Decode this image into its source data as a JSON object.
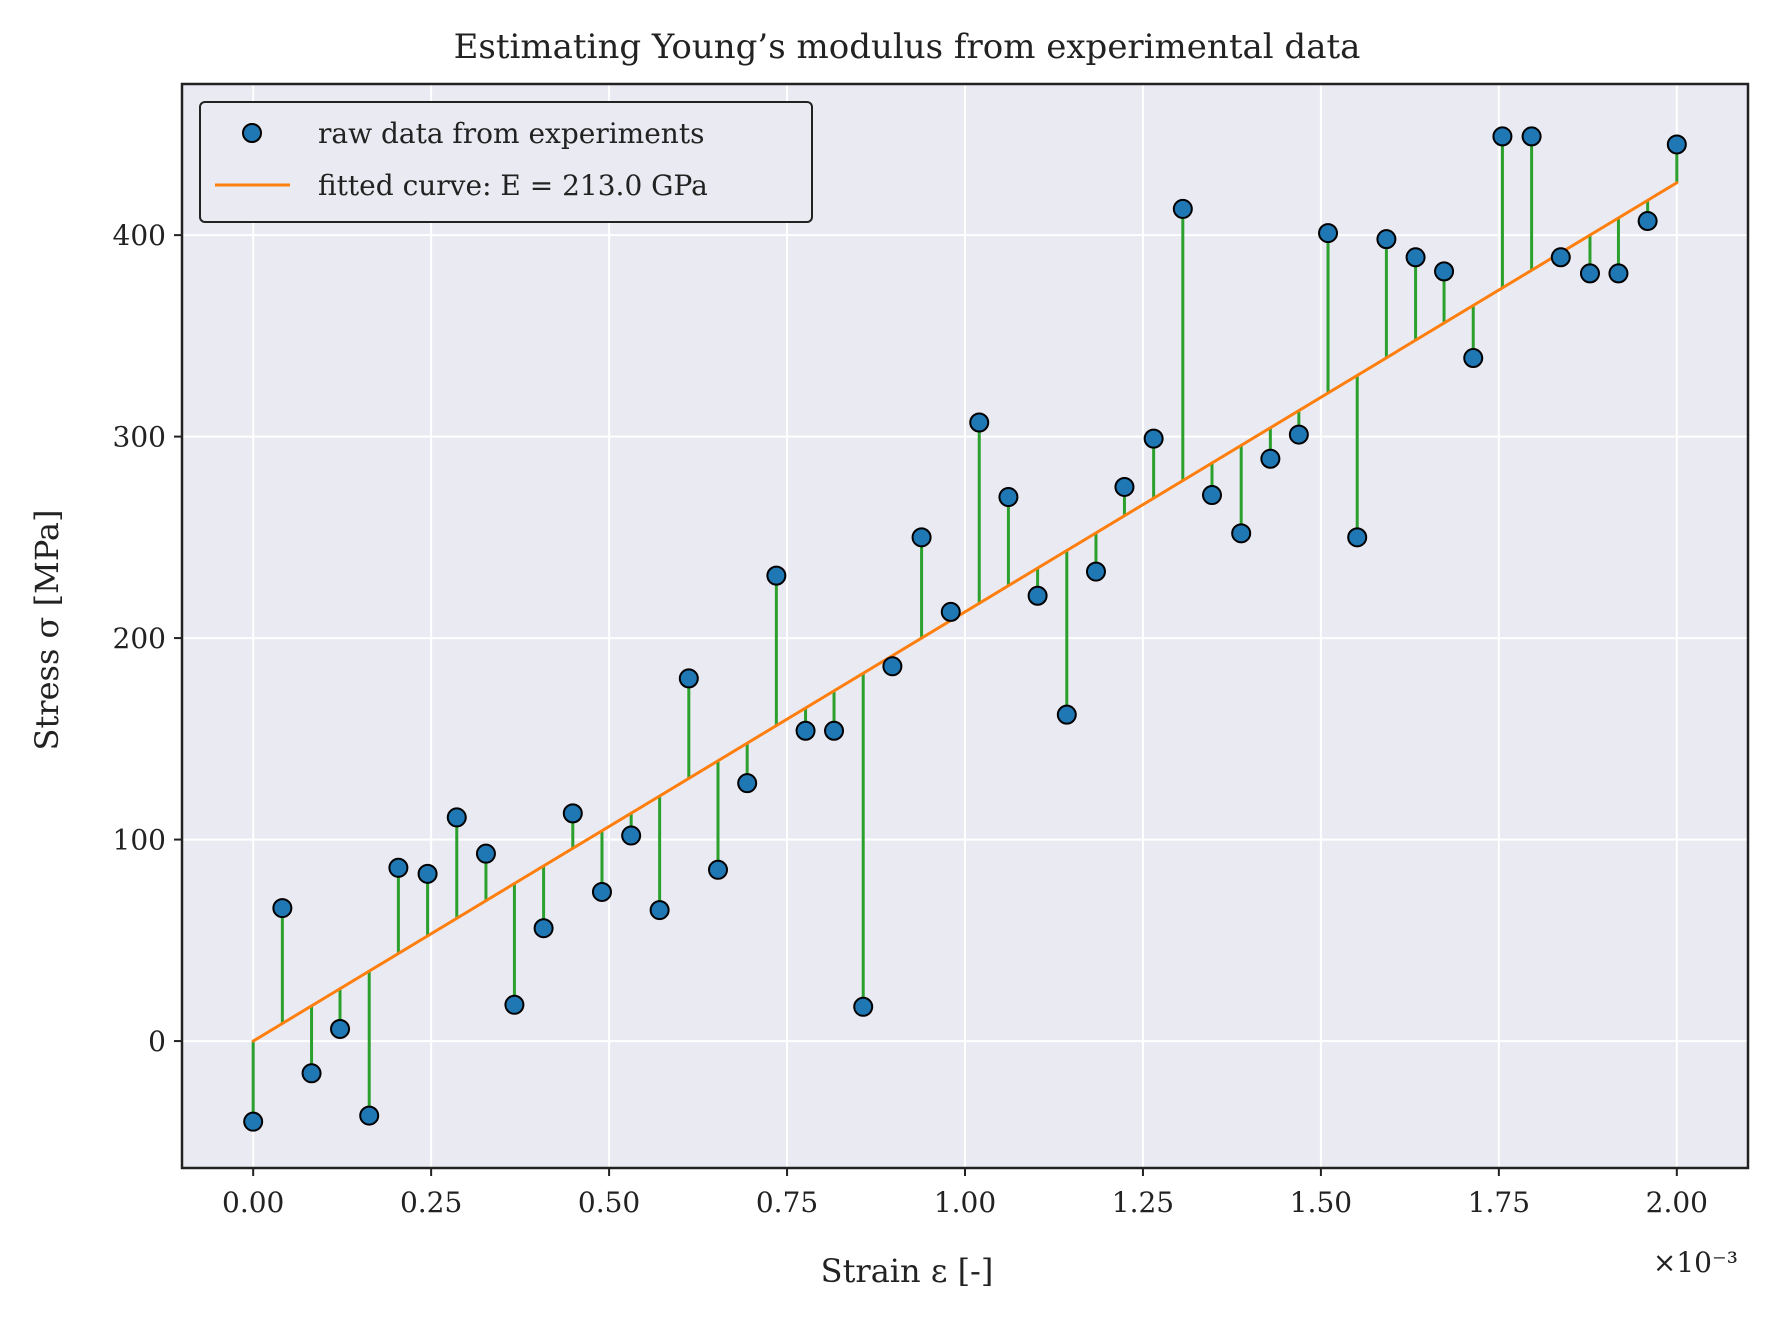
{
  "chart_data": {
    "type": "scatter",
    "title": "Estimating Young’s modulus from experimental data",
    "xlabel": "Strain ε [-]",
    "ylabel": "Stress σ [MPa]",
    "x_multiplier_label": "×10⁻³",
    "xlim": [
      -0.1,
      2.1
    ],
    "ylim": [
      -63,
      475
    ],
    "x_ticks": [
      0.0,
      0.25,
      0.5,
      0.75,
      1.0,
      1.25,
      1.5,
      1.75,
      2.0
    ],
    "x_tick_labels": [
      "0.00",
      "0.25",
      "0.50",
      "0.75",
      "1.00",
      "1.25",
      "1.50",
      "1.75",
      "2.00"
    ],
    "y_ticks": [
      0,
      100,
      200,
      300,
      400
    ],
    "y_tick_labels": [
      "0",
      "100",
      "200",
      "300",
      "400"
    ],
    "grid": true,
    "legend_placement": "top-left",
    "series": [
      {
        "name": "raw data from experiments",
        "kind": "points",
        "color": "#1f77b4",
        "edge_color": "#000000",
        "x": [
          0.0,
          0.041,
          0.082,
          0.122,
          0.163,
          0.204,
          0.245,
          0.286,
          0.327,
          0.367,
          0.408,
          0.449,
          0.49,
          0.531,
          0.571,
          0.612,
          0.653,
          0.694,
          0.735,
          0.776,
          0.816,
          0.857,
          0.898,
          0.939,
          0.98,
          1.02,
          1.061,
          1.102,
          1.143,
          1.184,
          1.224,
          1.265,
          1.306,
          1.347,
          1.388,
          1.429,
          1.469,
          1.51,
          1.551,
          1.592,
          1.633,
          1.673,
          1.714,
          1.755,
          1.796,
          1.837,
          1.878,
          1.918,
          1.959,
          2.0
        ],
        "y": [
          -40,
          66,
          -16,
          6,
          -37,
          86,
          83,
          111,
          93,
          18,
          56,
          113,
          74,
          102,
          65,
          180,
          85,
          128,
          231,
          154,
          154,
          17,
          186,
          250,
          213,
          307,
          270,
          221,
          162,
          233,
          275,
          299,
          413,
          271,
          252,
          289,
          301,
          401,
          250,
          398,
          389,
          382,
          339,
          449,
          449,
          389,
          381,
          381,
          407,
          445
        ]
      },
      {
        "name": "fitted curve: E = 213.0 GPa",
        "kind": "line",
        "color": "#ff7f0e",
        "x": [
          0.0,
          2.0
        ],
        "y": [
          0,
          426
        ]
      }
    ],
    "residual_lines": {
      "color": "#2ca02c"
    },
    "legend": {
      "entries": [
        {
          "label": "raw data from experiments",
          "marker": "circle"
        },
        {
          "label": "fitted curve: E = 213.0 GPa",
          "marker": "line"
        }
      ]
    },
    "colors": {
      "plot_background": "#eaeaf2",
      "grid": "#ffffff",
      "spine": "#222222"
    }
  }
}
